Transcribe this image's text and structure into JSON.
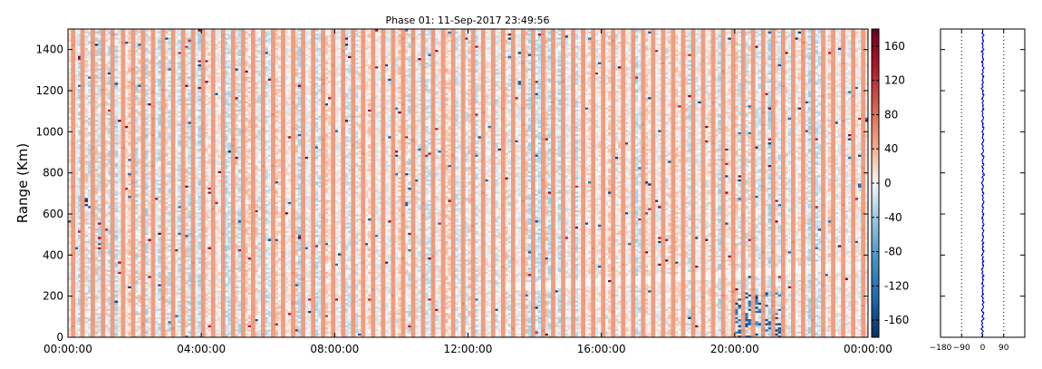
{
  "figure": {
    "title": "Phase 01: 11-Sep-2017 23:49:56"
  },
  "chart_data": [
    {
      "type": "heatmap",
      "title": "Phase 01: 11-Sep-2017 23:49:56",
      "xlabel": "",
      "ylabel": "Range (Km)",
      "x_ticks": [
        "00:00:00",
        "04:00:00",
        "08:00:00",
        "12:00:00",
        "16:00:00",
        "20:00:00",
        "00:00:00"
      ],
      "x_range_hours": [
        0,
        24
      ],
      "y_ticks": [
        0,
        200,
        400,
        600,
        800,
        1000,
        1200,
        1400
      ],
      "ylim": [
        0,
        1500
      ],
      "grid": false,
      "colormap": "RdBu_r",
      "value_range": [
        -180,
        180
      ],
      "colorbar": {
        "ticks": [
          -160,
          -120,
          -80,
          -40,
          0,
          40,
          80,
          120,
          160
        ],
        "vmin": -180,
        "vmax": 180,
        "negative_color": "#08306b",
        "zero_color": "#f7f7f7",
        "positive_color": "#67001f"
      },
      "columns": 240,
      "range_gates": 150,
      "persistent_positive_columns_hours": [
        0.15,
        0.43,
        0.74,
        1.05,
        1.33,
        1.65,
        1.95,
        2.25,
        2.55,
        2.85,
        3.15,
        3.45,
        3.75,
        4.05,
        4.35,
        4.65,
        4.95,
        5.25,
        5.55,
        5.85,
        6.15,
        6.45,
        6.75,
        7.05,
        7.35,
        7.65,
        7.95,
        8.25,
        8.55,
        8.85,
        9.15,
        9.45,
        9.75,
        10.05,
        10.35,
        10.65,
        10.95,
        11.25,
        11.55,
        11.85,
        12.15,
        12.45,
        12.75,
        13.05,
        13.35,
        13.65,
        13.95,
        14.25,
        14.55,
        14.85,
        15.15,
        15.45,
        15.75,
        16.05,
        16.35,
        16.65,
        16.95,
        17.25,
        17.55,
        17.85,
        18.15,
        18.45,
        18.75,
        19.05,
        19.35,
        19.65,
        19.95,
        20.25,
        20.55,
        20.85,
        21.15,
        21.45,
        21.75,
        22.05,
        22.35,
        22.65,
        22.95,
        23.25,
        23.55,
        23.85
      ],
      "positive_column_value": 55
    },
    {
      "type": "line",
      "title": "",
      "xlabel": "",
      "ylabel": "",
      "x_ticks": [
        -180,
        -90,
        0,
        90
      ],
      "xlim": [
        -180,
        180
      ],
      "ylim": [
        0,
        1500
      ],
      "reference_lines_x": [
        -90,
        0,
        90
      ],
      "series": [
        {
          "color": "#0000ee",
          "x": [
            -6,
            0,
            -4,
            3,
            -7,
            2,
            -4,
            -1,
            -5,
            6,
            -3,
            2,
            5,
            -6,
            1,
            4,
            -2,
            6,
            -1,
            3,
            -5,
            4,
            -2,
            2,
            -3,
            5,
            -4,
            0,
            3,
            -2,
            6,
            -3,
            1,
            -5,
            2,
            4,
            -1,
            5,
            -2,
            3,
            -4,
            1,
            6,
            -2,
            3,
            -1,
            5,
            -3,
            2,
            4,
            -2,
            1,
            5,
            -3,
            2,
            6,
            -1,
            3,
            -4,
            2,
            5,
            -2,
            0,
            4,
            -3,
            2,
            6,
            -1,
            3,
            -2,
            5,
            0,
            -4,
            3,
            2,
            -5,
            1,
            4,
            -3,
            8,
            2,
            -1,
            4,
            -3,
            5,
            1,
            -2,
            3,
            6,
            -6,
            2,
            4,
            -1,
            3,
            -4,
            2,
            5,
            -2,
            1,
            4,
            -3,
            2,
            6,
            -1,
            3,
            -5,
            2,
            4,
            -2,
            1,
            -3,
            5,
            0,
            3,
            -2,
            4,
            -4,
            2,
            6,
            -1,
            3,
            -6,
            2,
            -3,
            4,
            -2,
            1,
            5,
            -4,
            3,
            -1,
            6,
            -2,
            2,
            -5,
            4,
            1,
            -2,
            3,
            -6,
            5,
            -1,
            2,
            -3,
            4,
            1,
            -2,
            6,
            -3,
            2
          ],
          "y": [
            0,
            10,
            20,
            30,
            40,
            50,
            60,
            70,
            80,
            90,
            100,
            110,
            120,
            130,
            140,
            150,
            160,
            170,
            180,
            190,
            200,
            210,
            220,
            230,
            240,
            250,
            260,
            270,
            280,
            290,
            300,
            310,
            320,
            330,
            340,
            350,
            360,
            370,
            380,
            390,
            400,
            410,
            420,
            430,
            440,
            450,
            460,
            470,
            480,
            490,
            500,
            510,
            520,
            530,
            540,
            550,
            560,
            570,
            580,
            590,
            600,
            610,
            620,
            630,
            640,
            650,
            660,
            670,
            680,
            690,
            700,
            710,
            720,
            730,
            740,
            750,
            760,
            770,
            780,
            790,
            800,
            810,
            820,
            830,
            840,
            850,
            860,
            870,
            880,
            890,
            900,
            910,
            920,
            930,
            940,
            950,
            960,
            970,
            980,
            990,
            1000,
            1010,
            1020,
            1030,
            1040,
            1050,
            1060,
            1070,
            1080,
            1090,
            1100,
            1110,
            1120,
            1130,
            1140,
            1150,
            1160,
            1170,
            1180,
            1190,
            1200,
            1210,
            1220,
            1230,
            1240,
            1250,
            1260,
            1270,
            1280,
            1290,
            1300,
            1310,
            1320,
            1330,
            1340,
            1350,
            1360,
            1370,
            1380,
            1390,
            1400,
            1410,
            1420,
            1430,
            1440,
            1450,
            1460,
            1470,
            1480,
            1490
          ]
        }
      ]
    }
  ]
}
